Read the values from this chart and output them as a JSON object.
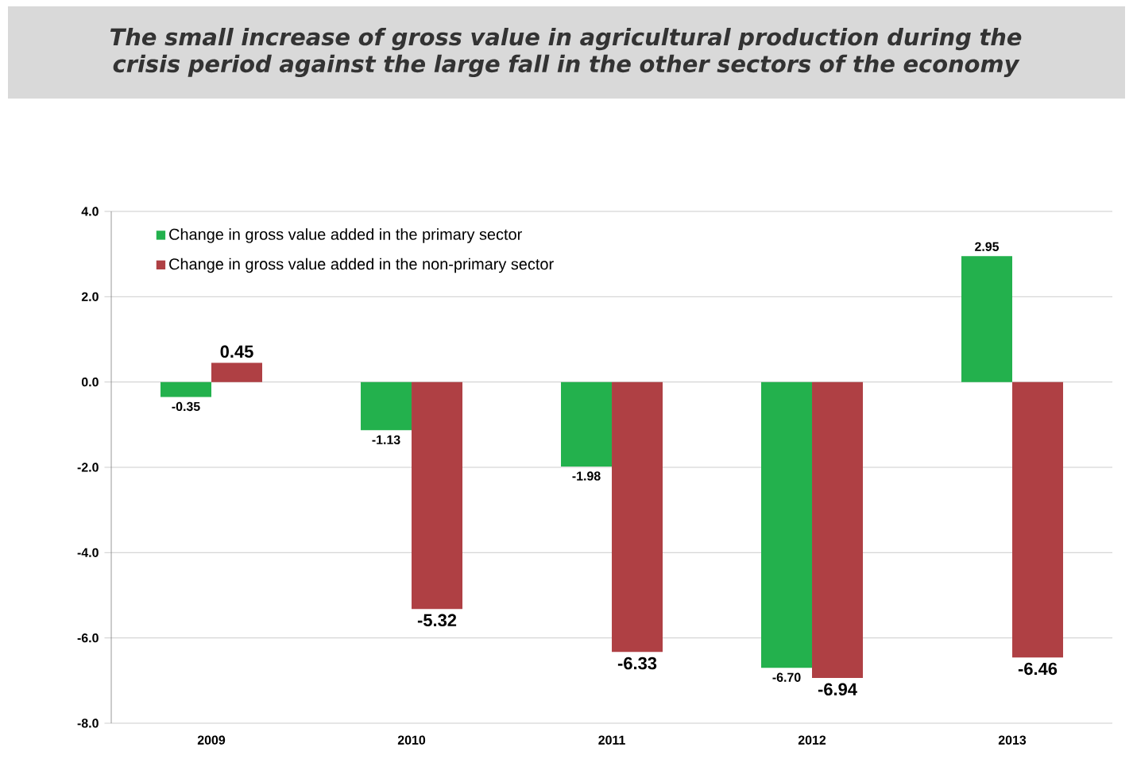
{
  "chart_data": {
    "type": "bar",
    "title": "The small increase of gross value in agricultural production during the crisis period against the large fall in the other sectors of the economy",
    "categories": [
      "2009",
      "2010",
      "2011",
      "2012",
      "2013"
    ],
    "series": [
      {
        "name": "Change in gross value added in the primary sector",
        "color": "#23b14d",
        "values": [
          -0.35,
          -1.13,
          -1.98,
          -6.7,
          2.95
        ],
        "value_labels": [
          "-0.35",
          "-1.13",
          "-1.98",
          "-6.70",
          "2.95"
        ]
      },
      {
        "name": "Change in gross value added in the non-primary sector",
        "color": "#af4044",
        "values": [
          0.45,
          -5.32,
          -6.33,
          -6.94,
          -6.46
        ],
        "value_labels": [
          "0.45",
          "-5.32",
          "-6.33",
          "-6.94",
          "-6.46"
        ]
      }
    ],
    "ylim": [
      -8,
      4
    ],
    "yticks": [
      {
        "value": -8,
        "label": "-8.0"
      },
      {
        "value": -6,
        "label": "-6.0"
      },
      {
        "value": -4,
        "label": "-4.0"
      },
      {
        "value": -2,
        "label": "-2.0"
      },
      {
        "value": 0,
        "label": "0.0"
      },
      {
        "value": 2,
        "label": "2.0"
      },
      {
        "value": 4,
        "label": "4.0"
      }
    ],
    "grid": "y",
    "legend": "top left"
  }
}
